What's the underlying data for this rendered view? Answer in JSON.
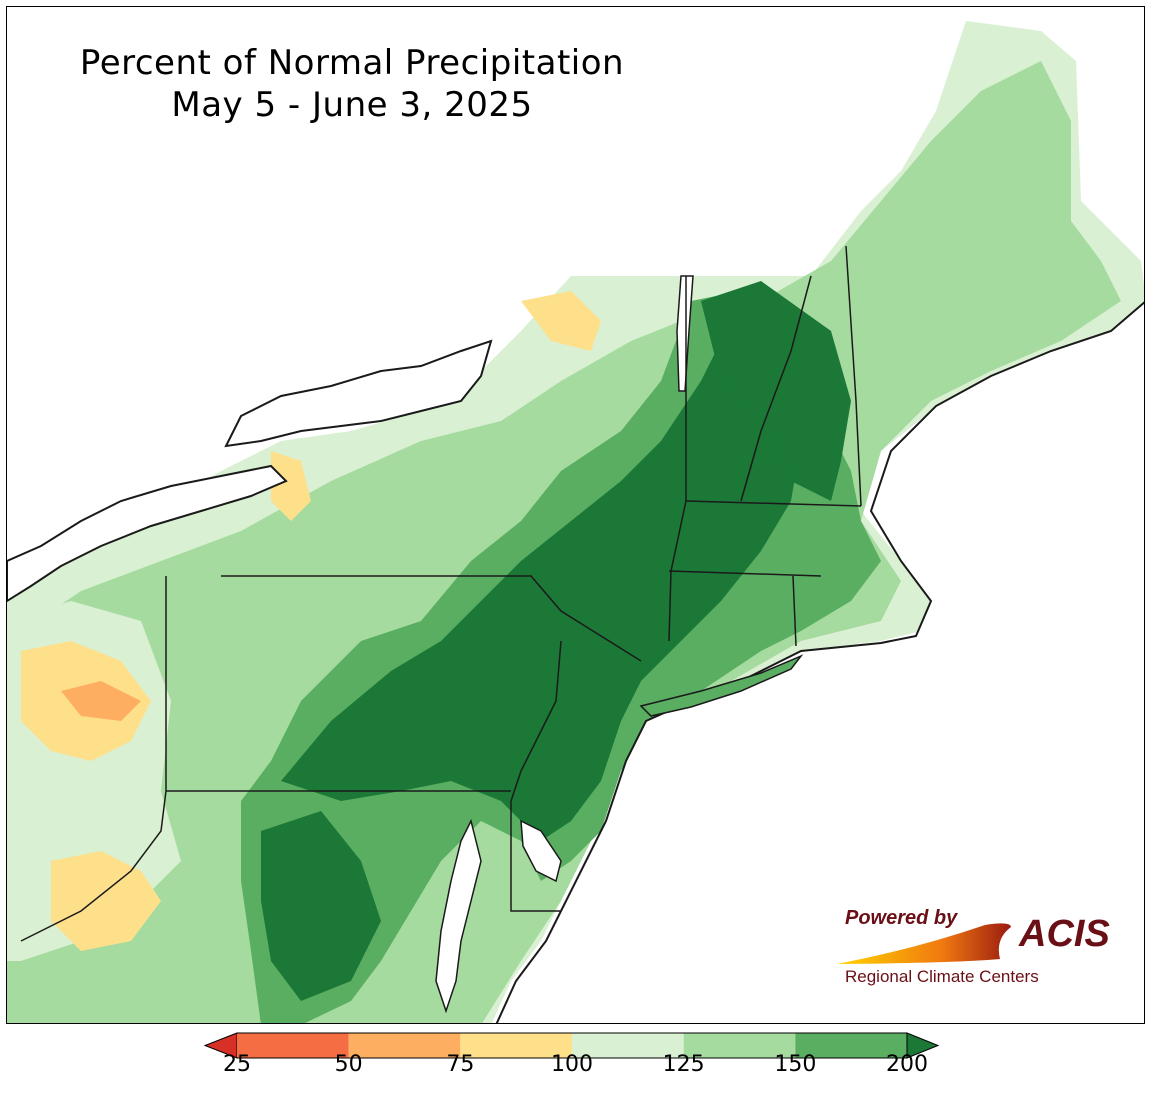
{
  "title": {
    "line1": "Percent of Normal Precipitation",
    "line2": "May 5 - June 3, 2025"
  },
  "logo": {
    "powered_by": "Powered by",
    "acis": "ACIS",
    "regional": "Regional Climate Centers"
  },
  "legend": {
    "ticks": [
      "25",
      "50",
      "75",
      "100",
      "125",
      "150",
      "200"
    ],
    "colors": [
      "#d73027",
      "#f46d43",
      "#fdae61",
      "#fee08b",
      "#d9f0d3",
      "#a6dba0",
      "#5aae61",
      "#1b7837"
    ]
  },
  "map_colors": {
    "water": "#ffffff",
    "boundary": "#1a1a1a"
  }
}
